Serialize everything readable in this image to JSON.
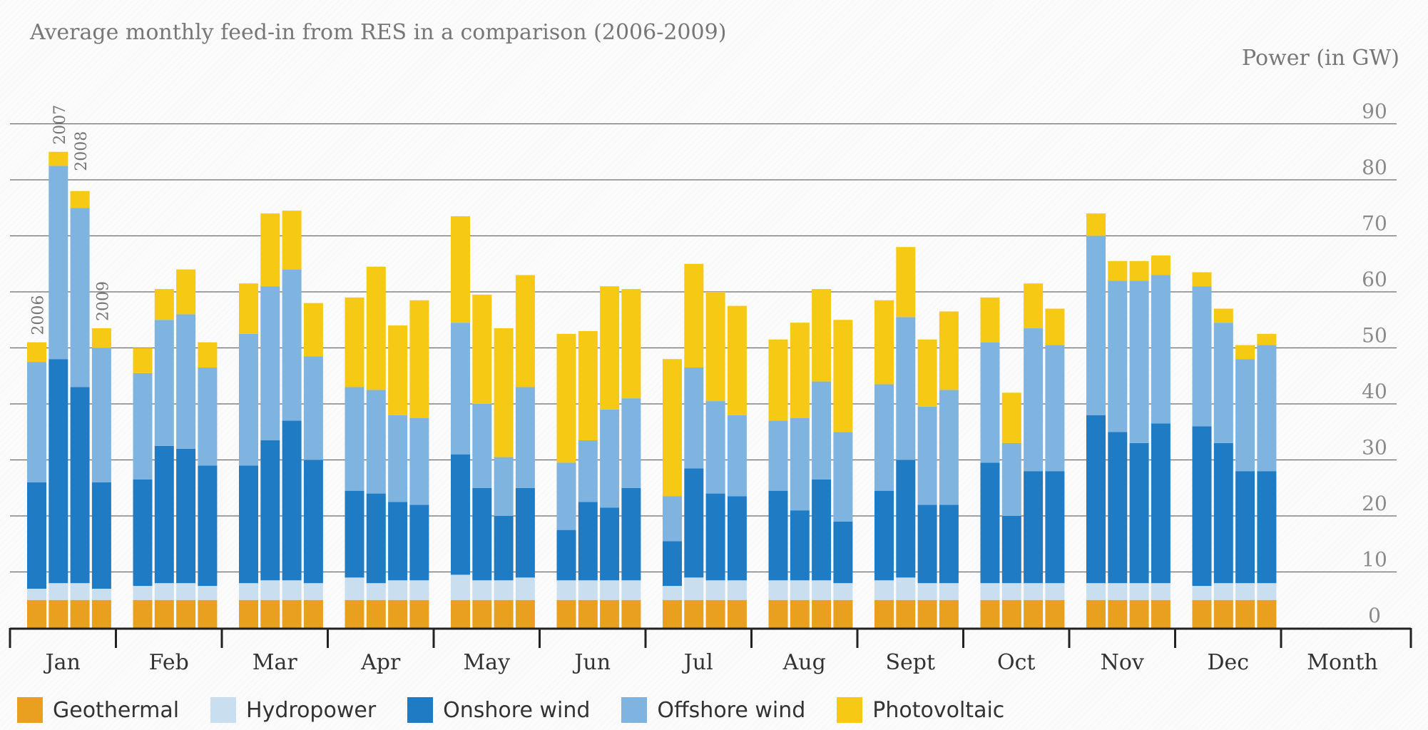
{
  "chart_data": {
    "type": "bar",
    "title": "Average monthly feed-in from RES in a comparison (2006-2009)",
    "ylabel": "Power (in GW)",
    "xlabel": "Month",
    "ylim": [
      0,
      90
    ],
    "yticks": [
      0,
      10,
      20,
      30,
      40,
      50,
      60,
      70,
      80,
      90
    ],
    "grid": true,
    "stacked": true,
    "legend_position": "bottom",
    "categories": [
      "Jan",
      "Feb",
      "Mar",
      "Apr",
      "May",
      "Jun",
      "Jul",
      "Aug",
      "Sept",
      "Oct",
      "Nov",
      "Dec"
    ],
    "years": [
      "2006",
      "2007",
      "2008",
      "2009"
    ],
    "year_labels_shown_in": "Jan",
    "series": [
      {
        "name": "Geothermal",
        "color": "#e8a01e"
      },
      {
        "name": "Hydropower",
        "color": "#c9dff0"
      },
      {
        "name": "Onshore wind",
        "color": "#1f7cc4"
      },
      {
        "name": "Offshore wind",
        "color": "#7fb4e0"
      },
      {
        "name": "Photovoltaic",
        "color": "#f6c915"
      }
    ],
    "bars": [
      [
        [
          5,
          2,
          19,
          21.5,
          3.5
        ],
        [
          5,
          3,
          40,
          34.5,
          2.5
        ],
        [
          5,
          3,
          35,
          32,
          3
        ],
        [
          5,
          2,
          19,
          24,
          3.5
        ]
      ],
      [
        [
          5,
          2.5,
          19,
          19,
          4.5
        ],
        [
          5,
          3,
          24.5,
          22.5,
          5.5
        ],
        [
          5,
          3,
          24,
          24,
          8
        ],
        [
          5,
          2.5,
          21.5,
          17.5,
          4.5
        ]
      ],
      [
        [
          5,
          3,
          21,
          23.5,
          9
        ],
        [
          5,
          3.5,
          25,
          27.5,
          13
        ],
        [
          5,
          3.5,
          28.5,
          27,
          10.5
        ],
        [
          5,
          3,
          22,
          18.5,
          9.5
        ]
      ],
      [
        [
          5,
          4,
          15.5,
          18.5,
          16
        ],
        [
          5,
          3,
          16,
          18.5,
          22
        ],
        [
          5,
          3.5,
          14,
          15.5,
          16
        ],
        [
          5,
          3.5,
          13.5,
          15.5,
          21
        ]
      ],
      [
        [
          5,
          4.5,
          21.5,
          23.5,
          19
        ],
        [
          5,
          3.5,
          16.5,
          15,
          19.5
        ],
        [
          5,
          3.5,
          11.5,
          10.5,
          23
        ],
        [
          5,
          4,
          16,
          18,
          20
        ]
      ],
      [
        [
          5,
          3.5,
          9,
          12,
          23
        ],
        [
          5,
          3.5,
          14,
          11,
          19.5
        ],
        [
          5,
          3.5,
          13,
          17.5,
          22
        ],
        [
          5,
          3.5,
          16.5,
          16,
          19.5
        ]
      ],
      [
        [
          5,
          2.5,
          8,
          8,
          24.5
        ],
        [
          5,
          4,
          19.5,
          18,
          18.5
        ],
        [
          5,
          3.5,
          15.5,
          16.5,
          19.5
        ],
        [
          5,
          3.5,
          15,
          14.5,
          19.5
        ]
      ],
      [
        [
          5,
          3.5,
          16,
          12.5,
          14.5
        ],
        [
          5,
          3.5,
          12.5,
          16.5,
          17
        ],
        [
          5,
          3.5,
          18,
          17.5,
          16.5
        ],
        [
          5,
          3,
          11,
          16,
          20
        ]
      ],
      [
        [
          5,
          3.5,
          16,
          19,
          15
        ],
        [
          5,
          4,
          21,
          25.5,
          12.5
        ],
        [
          5,
          3,
          14,
          17.5,
          12
        ],
        [
          5,
          3,
          14,
          20.5,
          14
        ]
      ],
      [
        [
          5,
          3,
          21.5,
          21.5,
          8
        ],
        [
          5,
          3,
          12,
          13,
          9
        ],
        [
          5,
          3,
          20,
          25.5,
          8
        ],
        [
          5,
          3,
          20,
          22.5,
          6.5
        ]
      ],
      [
        [
          5,
          3,
          30,
          32,
          4
        ],
        [
          5,
          3,
          27,
          27,
          3.5
        ],
        [
          5,
          3,
          25,
          29,
          3.5
        ],
        [
          5,
          3,
          28.5,
          26.5,
          3.5
        ]
      ],
      [
        [
          5,
          2.5,
          28.5,
          25,
          2.5
        ],
        [
          5,
          3,
          25,
          21.5,
          2.5
        ],
        [
          5,
          3,
          20,
          20,
          2.5
        ],
        [
          5,
          3,
          20,
          22.5,
          2
        ]
      ]
    ]
  }
}
